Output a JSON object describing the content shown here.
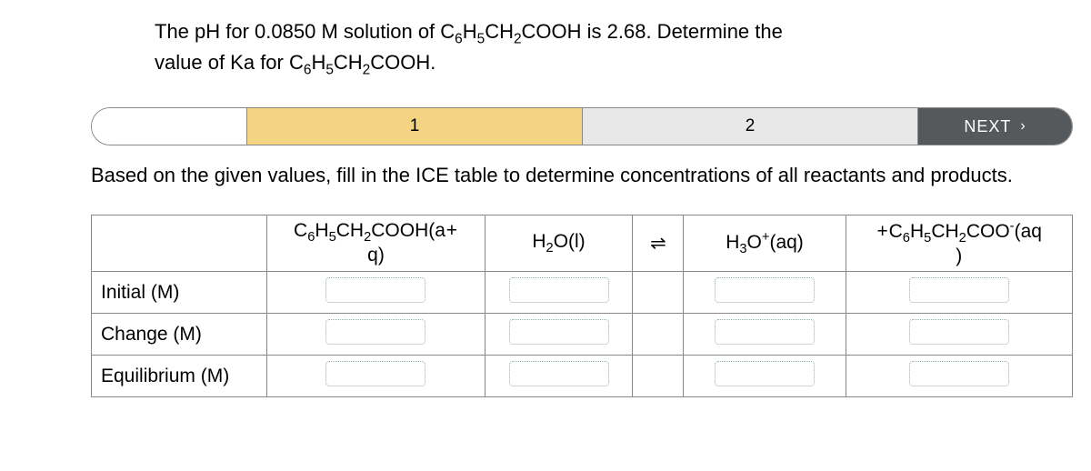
{
  "question": {
    "pre1": "The pH for 0.0850 M solution of C",
    "s1a": "6",
    "s1b": "5",
    "mid1": "H",
    "mid2": "CH",
    "s1c": "2",
    "post1": "COOH is 2.68. Determine the",
    "pre2": "value of Ka for C",
    "s2a": "6",
    "mid3": "H",
    "s2b": "5",
    "mid4": "CH",
    "s2c": "2",
    "post2": "COOH."
  },
  "steps": {
    "one": "1",
    "two": "2",
    "next": "NEXT",
    "chev": "›"
  },
  "instruction": "Based on the given values, fill in the ICE table to determine concentrations of all reactants and products.",
  "table": {
    "col1": {
      "a": "C",
      "s1": "6",
      "b": "H",
      "s2": "5",
      "c": "CH",
      "s3": "2",
      "d": "COOH(a",
      "plus": "+",
      "q": "q)"
    },
    "col2": {
      "a": "H",
      "s": "2",
      "b": "O(l)"
    },
    "eq": "⇌",
    "col4": {
      "a": "H",
      "s": "3",
      "b": "O",
      "sup": "+",
      "c": "(aq)"
    },
    "col5": {
      "plus": "+",
      "a": "C",
      "s1": "6",
      "b": "H",
      "s2": "5",
      "c": "CH",
      "s3": "2",
      "d": "COO",
      "sup": "-",
      "e": "(aq",
      "q": ")"
    },
    "rows": {
      "r1": "Initial (M)",
      "r2": "Change (M)",
      "r3": "Equilibrium (M)"
    }
  }
}
